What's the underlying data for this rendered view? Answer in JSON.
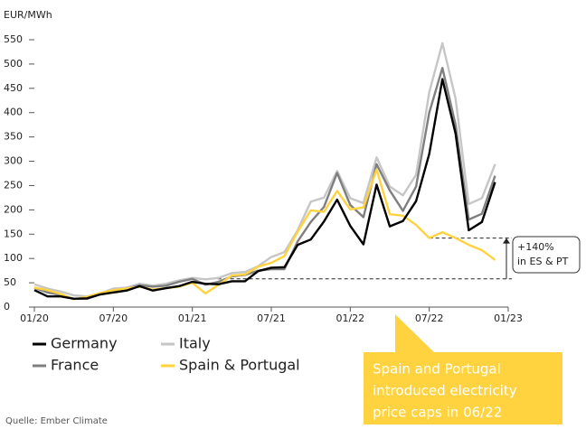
{
  "chart_data": {
    "type": "line",
    "y_label": "EUR/MWh",
    "x": [
      "2020-01",
      "2020-02",
      "2020-03",
      "2020-04",
      "2020-05",
      "2020-06",
      "2020-07",
      "2020-08",
      "2020-09",
      "2020-10",
      "2020-11",
      "2020-12",
      "2021-01",
      "2021-02",
      "2021-03",
      "2021-04",
      "2021-05",
      "2021-06",
      "2021-07",
      "2021-08",
      "2021-09",
      "2021-10",
      "2021-11",
      "2021-12",
      "2022-01",
      "2022-02",
      "2022-03",
      "2022-04",
      "2022-05",
      "2022-06",
      "2022-07",
      "2022-08",
      "2022-09",
      "2022-10",
      "2022-11",
      "2022-12"
    ],
    "xlim": [
      "2020-01",
      "2023-01"
    ],
    "xticks": [
      {
        "value": "2020-01",
        "label": "01/20"
      },
      {
        "value": "2020-07",
        "label": "07/20"
      },
      {
        "value": "2021-01",
        "label": "01/21"
      },
      {
        "value": "2021-07",
        "label": "07/21"
      },
      {
        "value": "2022-01",
        "label": "01/22"
      },
      {
        "value": "2022-07",
        "label": "07/22"
      },
      {
        "value": "2023-01",
        "label": "01/23"
      }
    ],
    "ylim": [
      0,
      550
    ],
    "yticks": [
      0,
      50,
      100,
      150,
      200,
      250,
      300,
      350,
      400,
      450,
      500,
      550
    ],
    "series": [
      {
        "name": "Italy",
        "color": "#c6c6c6",
        "values": [
          47,
          38,
          32,
          24,
          22,
          28,
          38,
          40,
          48,
          44,
          48,
          55,
          60,
          57,
          60,
          70,
          72,
          84,
          103,
          113,
          158,
          217,
          225,
          280,
          224,
          214,
          308,
          248,
          230,
          272,
          442,
          543,
          429,
          212,
          224,
          294
        ]
      },
      {
        "name": "France",
        "color": "#7f7f7f",
        "values": [
          40,
          30,
          25,
          17,
          17,
          26,
          35,
          37,
          45,
          42,
          44,
          52,
          58,
          46,
          52,
          63,
          66,
          75,
          78,
          78,
          135,
          175,
          206,
          276,
          210,
          185,
          294,
          240,
          198,
          248,
          400,
          492,
          375,
          180,
          192,
          270
        ]
      },
      {
        "name": "Spain & Portugal",
        "color": "#ffd23f",
        "values": [
          40,
          35,
          27,
          16,
          21,
          29,
          35,
          38,
          42,
          36,
          39,
          42,
          50,
          28,
          46,
          65,
          67,
          83,
          91,
          105,
          155,
          199,
          196,
          239,
          201,
          205,
          283,
          191,
          188,
          169,
          142,
          154,
          142,
          128,
          117,
          97
        ]
      },
      {
        "name": "Germany",
        "color": "#000000",
        "values": [
          35,
          22,
          22,
          17,
          18,
          26,
          30,
          34,
          43,
          34,
          39,
          43,
          52,
          48,
          47,
          53,
          53,
          74,
          81,
          82,
          128,
          139,
          176,
          221,
          167,
          129,
          252,
          166,
          177,
          218,
          315,
          469,
          357,
          158,
          175,
          257
        ]
      }
    ],
    "reference_lines": [
      {
        "value": 58,
        "from": "2021-01"
      },
      {
        "value": 142,
        "from": "2022-07"
      }
    ],
    "bracket_label": [
      "+140%",
      "in ES & PT"
    ],
    "callout": [
      "Spain and Portugal",
      "introduced electricity",
      "price caps in 06/22"
    ],
    "source": "Quelle: Ember Climate"
  }
}
